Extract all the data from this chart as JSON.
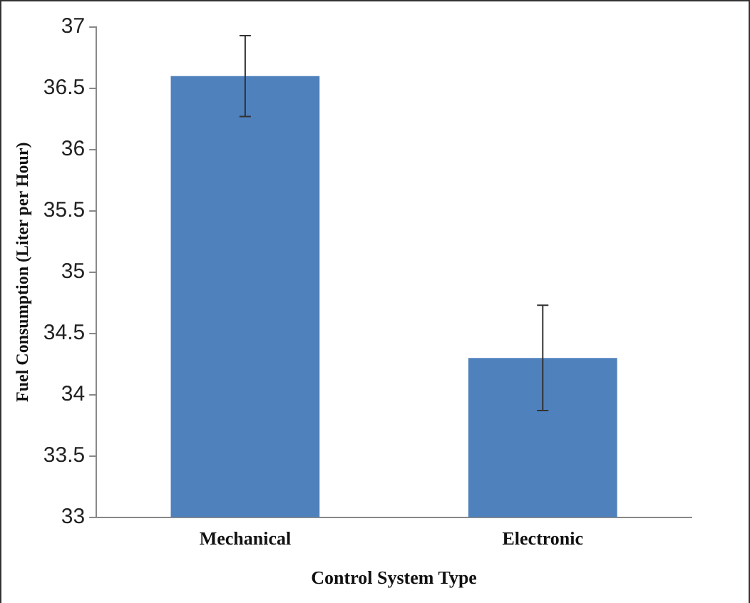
{
  "chart_data": {
    "type": "bar",
    "xlabel": "Control System Type",
    "ylabel": "Fuel Consumption (Liter per Hour)",
    "categories": [
      "Mechanical",
      "Electronic"
    ],
    "values": [
      36.6,
      34.3
    ],
    "errors": [
      0.33,
      0.43
    ],
    "color": "#4f81bd",
    "ylim": [
      33,
      37
    ],
    "yticks": [
      33,
      33.5,
      34,
      34.5,
      35,
      35.5,
      36,
      36.5,
      37
    ],
    "grid": false,
    "legend": false
  }
}
